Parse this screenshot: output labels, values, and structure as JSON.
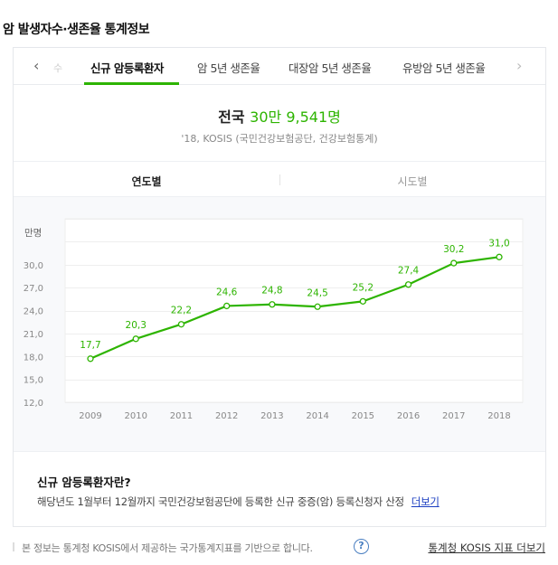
{
  "page_title": "암 발생자수·생존율 통계정보",
  "tabs": {
    "prev_icon": "‹",
    "next_icon": "›",
    "truncated_left": "수",
    "items": [
      {
        "label": "신규 암등록환자",
        "active": true
      },
      {
        "label": "암 5년 생존율",
        "active": false
      },
      {
        "label": "대장암 5년 생존율",
        "active": false
      },
      {
        "label": "유방암 5년 생존율",
        "active": false
      }
    ]
  },
  "summary": {
    "region": "전국",
    "value": "30만 9,541명",
    "source": "'18, KOSIS (국민건강보험공단, 건강보험통계)"
  },
  "subtabs": [
    {
      "label": "연도별",
      "active": true
    },
    {
      "label": "시도별",
      "active": false
    }
  ],
  "colors": {
    "accent": "#2db400",
    "line": "#2db400",
    "grid": "#eeeeee",
    "axis_text": "#888888",
    "link": "#1a3dc1"
  },
  "chart_data": {
    "type": "line",
    "title": "",
    "xlabel": "",
    "ylabel": "만명",
    "categories": [
      "2009",
      "2010",
      "2011",
      "2012",
      "2013",
      "2014",
      "2015",
      "2016",
      "2017",
      "2018"
    ],
    "values": [
      17.7,
      20.3,
      22.2,
      24.6,
      24.8,
      24.5,
      25.2,
      27.4,
      30.2,
      31.0
    ],
    "data_labels": [
      "17,7",
      "20,3",
      "22,2",
      "24,6",
      "24,8",
      "24,5",
      "25,2",
      "27,4",
      "30,2",
      "31,0"
    ],
    "yticks": [
      "12,0",
      "15,0",
      "18,0",
      "21,0",
      "24,0",
      "27,0",
      "30,0"
    ],
    "ylim": [
      12,
      36
    ],
    "grid": true,
    "legend": "none",
    "series": [
      {
        "name": "신규 암등록환자",
        "values": [
          17.7,
          20.3,
          22.2,
          24.6,
          24.8,
          24.5,
          25.2,
          27.4,
          30.2,
          31.0
        ]
      }
    ]
  },
  "definition": {
    "title": "신규 암등록환자란?",
    "text": "해당년도 1월부터 12월까지 국민건강보험공단에 등록한 신규 중증(암) 등록신청자 산정",
    "more_label": "더보기"
  },
  "footer": {
    "text": "본 정보는 통계청 KOSIS에서 제공하는 국가통계지표를 기반으로 합니다.",
    "help_icon": "?",
    "link_label": "통계청 KOSIS 지표 더보기"
  }
}
